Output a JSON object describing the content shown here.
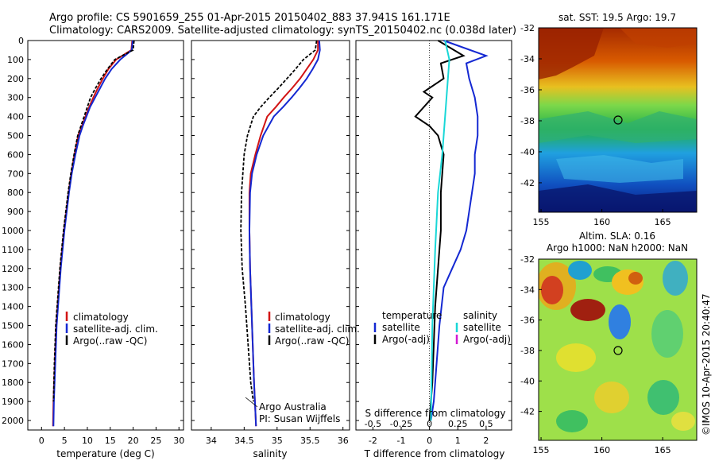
{
  "header": {
    "line1": "Argo profile: CS 5901659_255 01-Apr-2015 20150402_883 37.941S 161.171E",
    "line2": "Climatology: CARS2009. Satellite-adjusted climatology: synTS_20150402.nc (0.038d later)"
  },
  "colors": {
    "climatology": "#d21414",
    "satellite": "#1428d2",
    "argo": "#000000",
    "sat_salinity": "#19d7d7",
    "argo_adj_salinity": "#d219d2"
  },
  "chart_data": [
    {
      "type": "line",
      "name": "temperature",
      "xlabel": "temperature (deg C)",
      "ylabel": "",
      "xlim": [
        -3,
        31
      ],
      "ylim": [
        2050,
        0
      ],
      "y_reversed": true,
      "xticks": [
        "0",
        "5",
        "10",
        "15",
        "20",
        "25",
        "30"
      ],
      "yticks": [
        "0",
        "100",
        "200",
        "300",
        "400",
        "500",
        "600",
        "700",
        "800",
        "900",
        "1000",
        "1100",
        "1200",
        "1300",
        "1400",
        "1500",
        "1600",
        "1700",
        "1800",
        "1900",
        "2000"
      ],
      "legend": [
        "climatology",
        "satellite-adj. clim.",
        "Argo(..raw -QC)"
      ],
      "series": [
        {
          "name": "climatology",
          "color": "#d21414",
          "x": [
            19.8,
            19.6,
            16.3,
            14.6,
            13.4,
            12.3,
            11.3,
            10.4,
            9.6,
            8.8,
            8.0,
            7.2,
            6.5,
            5.9,
            5.4,
            4.9,
            4.5,
            4.1,
            3.8,
            3.5,
            3.2,
            2.9,
            2.6,
            2.5
          ],
          "y": [
            0,
            50,
            100,
            150,
            200,
            250,
            300,
            350,
            400,
            450,
            500,
            600,
            700,
            800,
            900,
            1000,
            1100,
            1200,
            1300,
            1400,
            1500,
            1700,
            1900,
            2030
          ]
        },
        {
          "name": "satellite-adj. clim.",
          "color": "#1428d2",
          "x": [
            19.9,
            19.7,
            17.2,
            15.3,
            13.9,
            12.8,
            11.7,
            10.6,
            9.8,
            9.0,
            8.3,
            7.4,
            6.6,
            6.0,
            5.5,
            5.0,
            4.6,
            4.2,
            3.9,
            3.6,
            3.3,
            3.0,
            2.7,
            2.6
          ],
          "y": [
            0,
            50,
            100,
            150,
            200,
            250,
            300,
            350,
            400,
            450,
            500,
            600,
            700,
            800,
            900,
            1000,
            1100,
            1200,
            1300,
            1400,
            1500,
            1700,
            1900,
            2030
          ]
        },
        {
          "name": "Argo(..raw -QC)",
          "color": "#000000",
          "x": [
            20.2,
            20.0,
            16.0,
            14.4,
            13.0,
            11.8,
            10.7,
            10.0,
            9.3,
            8.6,
            7.9,
            7.1,
            6.4,
            5.8,
            5.3,
            4.8,
            4.4,
            4.0,
            3.7,
            3.4,
            3.1,
            2.8,
            2.6
          ],
          "y": [
            0,
            50,
            100,
            150,
            200,
            250,
            300,
            350,
            400,
            450,
            500,
            600,
            700,
            800,
            900,
            1000,
            1100,
            1200,
            1300,
            1400,
            1500,
            1700,
            1900
          ]
        }
      ]
    },
    {
      "type": "line",
      "name": "salinity",
      "xlabel": "salinity",
      "xlim": [
        33.7,
        36.1
      ],
      "ylim": [
        2050,
        0
      ],
      "y_reversed": true,
      "xticks": [
        "34",
        "34.5",
        "35",
        "35.5",
        "36"
      ],
      "legend": [
        "climatology",
        "satellite-adj. clim.",
        "Argo(..raw -QC)"
      ],
      "annotation": [
        "Argo Australia",
        "PI: Susan Wijffels"
      ],
      "series": [
        {
          "name": "climatology",
          "color": "#d21414",
          "x": [
            35.62,
            35.62,
            35.55,
            35.45,
            35.35,
            35.23,
            35.1,
            34.98,
            34.85,
            34.75,
            34.67,
            34.6,
            34.58,
            34.58,
            34.59,
            34.61,
            34.63,
            34.65,
            34.67,
            34.68
          ],
          "y": [
            0,
            50,
            100,
            150,
            200,
            250,
            300,
            350,
            400,
            500,
            600,
            700,
            800,
            1000,
            1200,
            1400,
            1600,
            1800,
            1950,
            2030
          ]
        },
        {
          "name": "satellite-adj. clim.",
          "color": "#1428d2",
          "x": [
            35.64,
            35.65,
            35.62,
            35.54,
            35.45,
            35.34,
            35.22,
            35.09,
            34.95,
            34.79,
            34.69,
            34.62,
            34.59,
            34.58,
            34.59,
            34.61,
            34.63,
            34.65,
            34.67,
            34.68
          ],
          "y": [
            0,
            50,
            100,
            150,
            200,
            250,
            300,
            350,
            400,
            500,
            600,
            700,
            800,
            1000,
            1200,
            1400,
            1600,
            1800,
            1950,
            2030
          ]
        },
        {
          "name": "Argo(..raw -QC)",
          "color": "#000000",
          "x": [
            35.6,
            35.58,
            35.4,
            35.28,
            35.15,
            35.02,
            34.88,
            34.75,
            34.64,
            34.55,
            34.5,
            34.48,
            34.46,
            34.45,
            34.47,
            34.52,
            34.56,
            34.6,
            34.64
          ],
          "y": [
            0,
            50,
            100,
            150,
            200,
            250,
            300,
            350,
            400,
            500,
            600,
            700,
            800,
            1000,
            1200,
            1400,
            1600,
            1800,
            1900
          ]
        }
      ]
    },
    {
      "type": "line",
      "name": "difference from climatology",
      "xlabel": "T difference from climatology",
      "xlabel_top": "S difference from climatology",
      "xlim": [
        -2.6,
        2.9
      ],
      "ylim": [
        2050,
        0
      ],
      "y_reversed": true,
      "xticks": [
        "-2",
        "-1",
        "0",
        "1",
        "2"
      ],
      "xticks_top": [
        "-0.5",
        "-0.25",
        "0",
        "0.25",
        "0.5"
      ],
      "legend_temperature": {
        "title": "temperature",
        "items": [
          "satellite",
          "Argo(-adj)"
        ]
      },
      "legend_salinity": {
        "title": "salinity",
        "items": [
          "satellite",
          "Argo(-adj)"
        ]
      },
      "series": [
        {
          "name": "temperature satellite",
          "color": "#1428d2",
          "x": [
            0.5,
            2.0,
            1.3,
            1.4,
            1.6,
            1.7,
            1.7,
            1.6,
            1.6,
            1.5,
            1.4,
            1.3,
            1.1,
            0.8,
            0.5,
            0.35,
            0.25,
            0.15,
            0.05
          ],
          "y": [
            0,
            80,
            120,
            200,
            300,
            400,
            500,
            600,
            700,
            800,
            900,
            1000,
            1100,
            1200,
            1300,
            1500,
            1700,
            1900,
            2000
          ]
        },
        {
          "name": "temperature Argo(-adj)",
          "color": "#000000",
          "x": [
            0.3,
            1.2,
            0.4,
            0.5,
            -0.2,
            0.1,
            -0.5,
            0.0,
            0.3,
            0.5,
            0.4,
            0.4,
            0.3,
            0.2,
            0.15,
            0.1,
            0.05,
            0.0
          ],
          "y": [
            0,
            80,
            120,
            200,
            270,
            300,
            400,
            450,
            500,
            600,
            800,
            1000,
            1200,
            1400,
            1600,
            1800,
            1900,
            2000
          ]
        },
        {
          "name": "salinity satellite",
          "color": "#19d7d7",
          "x": [
            0.55,
            0.7,
            0.65,
            0.55,
            0.45,
            0.3,
            0.2,
            0.1,
            0.05
          ],
          "y": [
            0,
            100,
            200,
            400,
            600,
            800,
            1100,
            1500,
            2000
          ]
        }
      ]
    }
  ],
  "maps": {
    "sst": {
      "title": "sat. SST: 19.5 Argo: 19.7",
      "yticks": [
        "-32",
        "-34",
        "-36",
        "-38",
        "-40",
        "-42"
      ],
      "xticks": [
        "155",
        "160",
        "165"
      ]
    },
    "sla": {
      "title1": "Altim. SLA: 0.16",
      "title2": "Argo h1000: NaN h2000: NaN",
      "yticks": [
        "-32",
        "-34",
        "-36",
        "-38",
        "-40",
        "-42"
      ],
      "xticks": [
        "155",
        "160",
        "165"
      ]
    },
    "position": {
      "lon": 161.171,
      "lat": -37.941
    }
  },
  "credit": "©IMOS 10-Apr-2015 20:40:47"
}
